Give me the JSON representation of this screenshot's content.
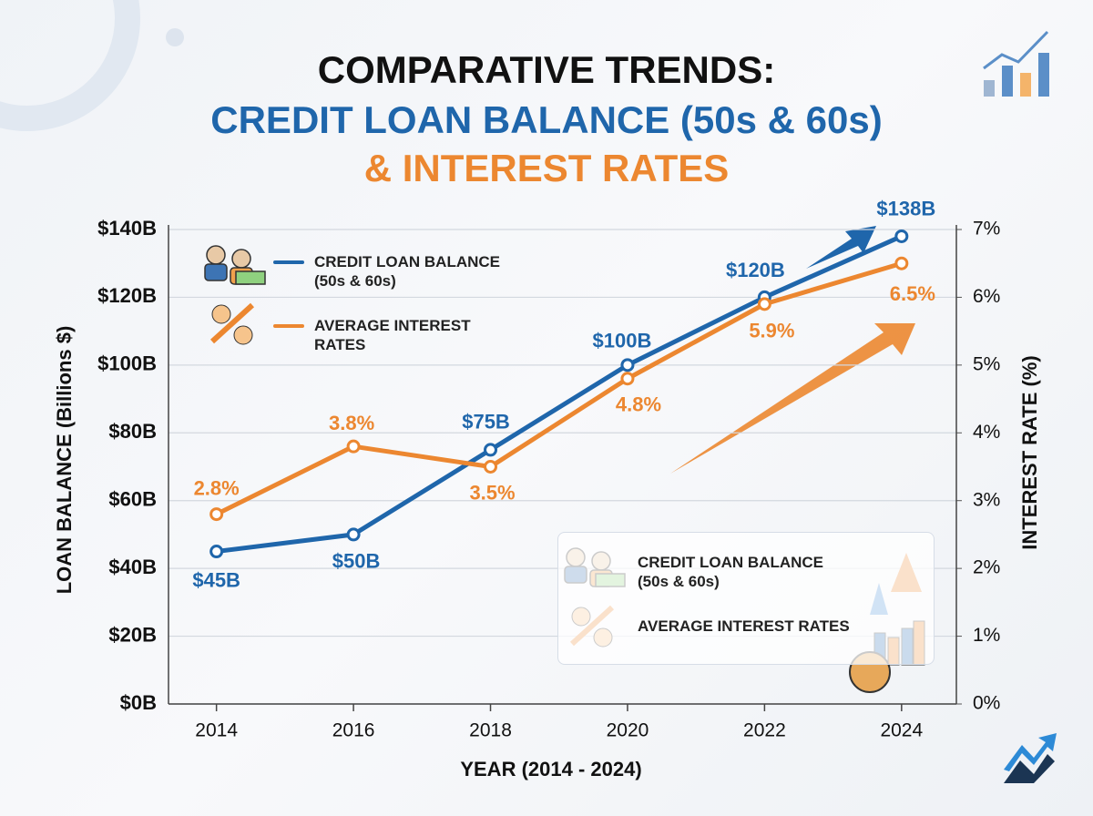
{
  "chart_data": {
    "type": "line",
    "title_lines": [
      "COMPARATIVE TRENDS:",
      "CREDIT LOAN BALANCE (50s & 60s)",
      "& INTEREST RATES"
    ],
    "y_label": "LOAN BALANCE (Billions $)",
    "y2_label": "INTEREST RATE (%)",
    "x_label": "YEAR (2014 - 2024)",
    "x": [
      2014,
      2016,
      2018,
      2020,
      2022,
      2024
    ],
    "xlim": [
      2013.3,
      2024.8
    ],
    "xticks": [
      2014,
      2016,
      2018,
      2020,
      2022,
      2024
    ],
    "ylim": [
      0,
      140
    ],
    "yticks": [
      {
        "value": 0,
        "label": "$0B"
      },
      {
        "value": 20,
        "label": "$20B"
      },
      {
        "value": 40,
        "label": "$40B"
      },
      {
        "value": 60,
        "label": "$60B"
      },
      {
        "value": 80,
        "label": "$80B"
      },
      {
        "value": 100,
        "label": "$100B"
      },
      {
        "value": 120,
        "label": "$120B"
      },
      {
        "value": 140,
        "label": "$140B"
      }
    ],
    "y2lim": [
      0,
      7
    ],
    "y2ticks": [
      {
        "value": 0,
        "label": "0%"
      },
      {
        "value": 1,
        "label": "1%"
      },
      {
        "value": 2,
        "label": "2%"
      },
      {
        "value": 3,
        "label": "3%"
      },
      {
        "value": 4,
        "label": "4%"
      },
      {
        "value": 5,
        "label": "5%"
      },
      {
        "value": 6,
        "label": "6%"
      },
      {
        "value": 7,
        "label": "7%"
      }
    ],
    "grid": true,
    "series": [
      {
        "name": "CREDIT LOAN BALANCE (50s & 60s)",
        "color": "#1f66ab",
        "axis": "y",
        "values": [
          45,
          50,
          75,
          100,
          120,
          138
        ],
        "value_labels": [
          "$45B",
          "$50B",
          "$75B",
          "$100B",
          "$120B",
          "$138B"
        ]
      },
      {
        "name": "AVERAGE INTEREST RATES",
        "color": "#ec8730",
        "axis": "y2",
        "values": [
          2.8,
          3.8,
          3.5,
          4.8,
          5.9,
          6.5
        ],
        "value_labels": [
          "2.8%",
          "3.8%",
          "3.5%",
          "4.8%",
          "5.9%",
          "6.5%"
        ]
      }
    ]
  }
}
